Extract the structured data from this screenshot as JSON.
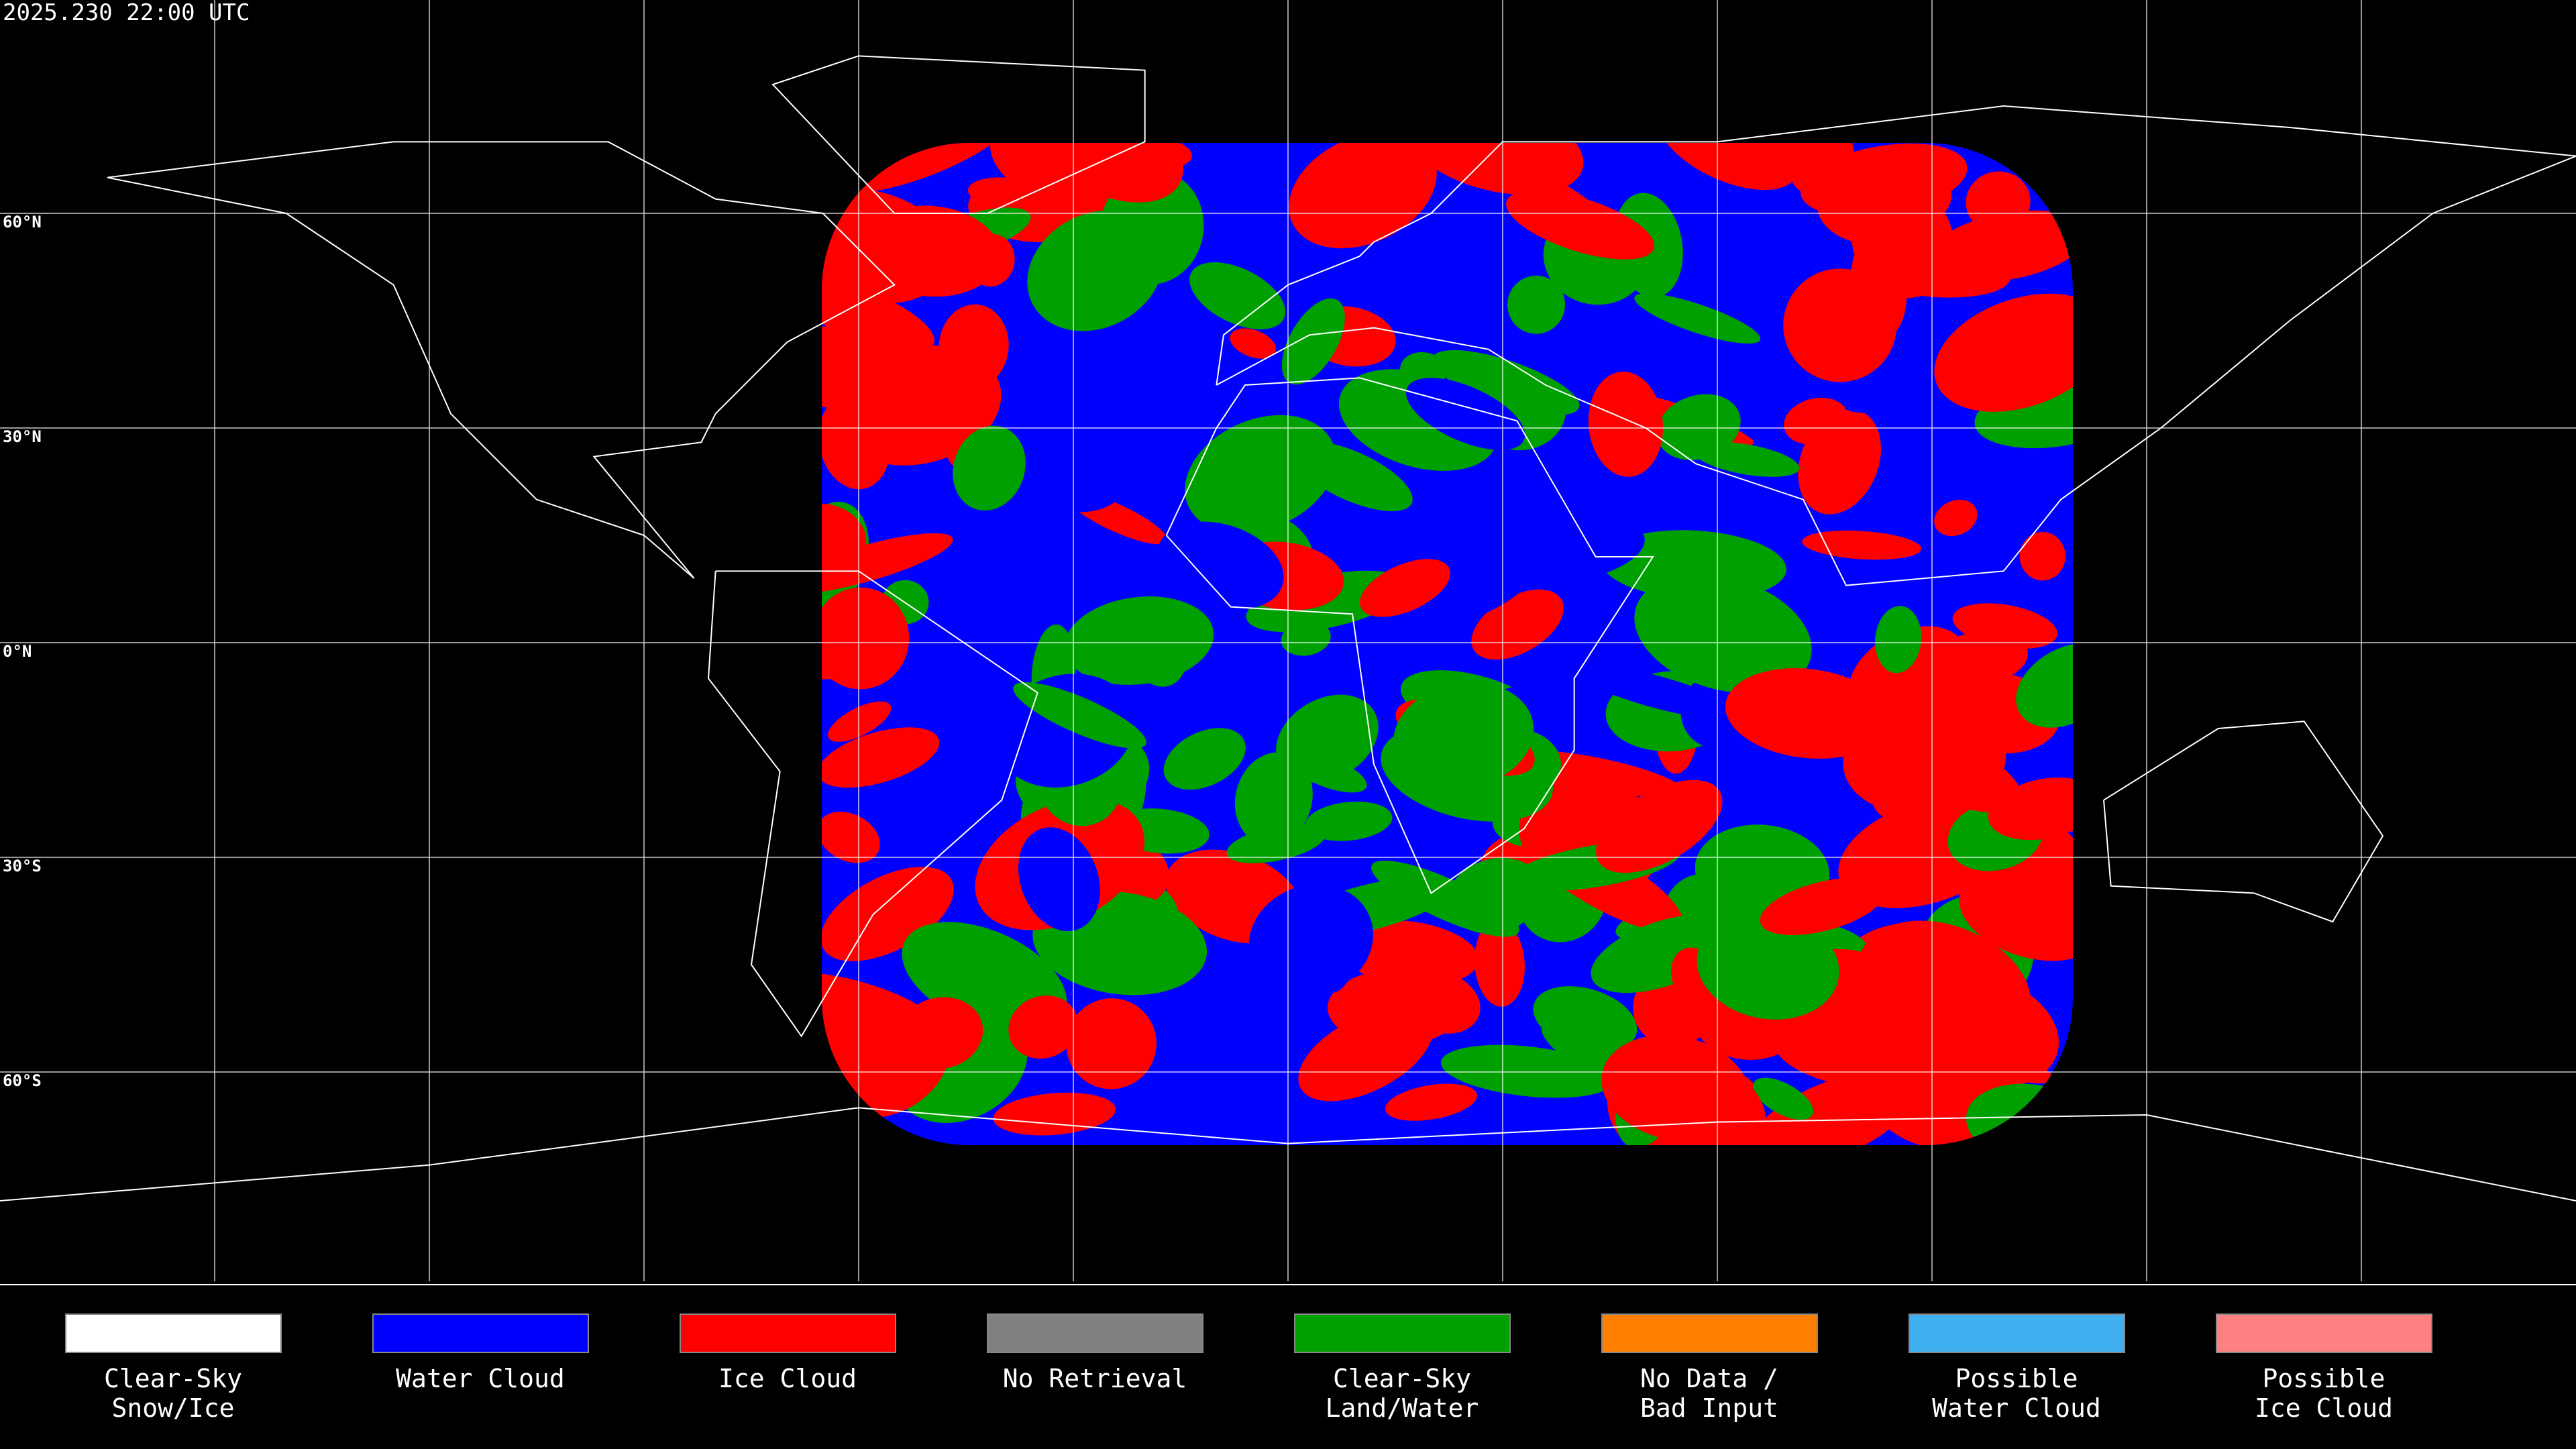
{
  "header": {
    "timestamp": "2025.230 22:00 UTC"
  },
  "latitude_labels": [
    "60°N",
    "30°N",
    "0°N",
    "30°S",
    "60°S"
  ],
  "legend": [
    {
      "label": [
        "Clear-Sky",
        "Snow/Ice"
      ],
      "color": "#ffffff"
    },
    {
      "label": [
        "Water Cloud"
      ],
      "color": "#0000ff"
    },
    {
      "label": [
        "Ice Cloud"
      ],
      "color": "#ff0000"
    },
    {
      "label": [
        "No Retrieval"
      ],
      "color": "#808080"
    },
    {
      "label": [
        "Clear-Sky",
        "Land/Water"
      ],
      "color": "#00a000"
    },
    {
      "label": [
        "No Data /",
        "Bad Input"
      ],
      "color": "#ff8000"
    },
    {
      "label": [
        "Possible",
        "Water Cloud"
      ],
      "color": "#40b0f0"
    },
    {
      "label": [
        "Possible",
        "Ice Cloud"
      ],
      "color": "#ff8080"
    }
  ]
}
